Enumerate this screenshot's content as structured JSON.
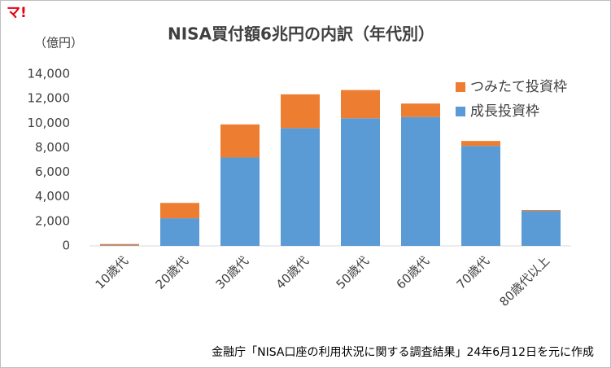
{
  "logo": "マ!",
  "chart_data": {
    "type": "stacked-bar",
    "title": "NISA買付額6兆円の内訳（年代別）",
    "y_label": "（億円）",
    "source": "金融庁「NISA口座の利用状況に関する調査結果」24年6月12日を元に作成",
    "categories": [
      "10歳代",
      "20歳代",
      "30歳代",
      "40歳代",
      "50歳代",
      "60歳代",
      "70歳代",
      "80歳代以上"
    ],
    "series": [
      {
        "name": "成長投資枠",
        "color": "#5b9bd5",
        "values": [
          50,
          2250,
          7200,
          9600,
          10400,
          10500,
          8150,
          2850
        ]
      },
      {
        "name": "つみたて投資枠",
        "color": "#ed7d31",
        "values": [
          100,
          1250,
          2700,
          2750,
          2300,
          1100,
          400,
          70
        ]
      }
    ],
    "ylim": [
      0,
      14000
    ],
    "yticks": [
      0,
      {
        "value": 2000,
        "label": "2,000"
      },
      {
        "value": 4000,
        "label": "4,000"
      },
      {
        "value": 6000,
        "label": "6,000"
      },
      {
        "value": 8000,
        "label": "8,000"
      },
      {
        "value": 10000,
        "label": "10,000"
      },
      {
        "value": 12000,
        "label": "12,000"
      },
      {
        "value": 14000,
        "label": "14,000"
      }
    ],
    "grid": false,
    "legend": "top-right"
  }
}
